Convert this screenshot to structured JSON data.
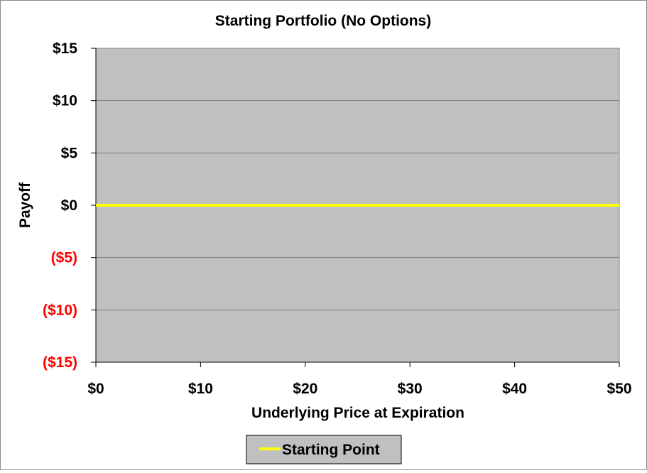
{
  "chart_data": {
    "type": "line",
    "title": "Starting Portfolio (No Options)",
    "xlabel": "Underlying Price at Expiration",
    "ylabel": "Payoff",
    "xlim": [
      0,
      50
    ],
    "ylim": [
      -15,
      15
    ],
    "x_ticks": [
      0,
      10,
      20,
      30,
      40,
      50
    ],
    "x_tick_labels": [
      "$0",
      "$10",
      "$20",
      "$30",
      "$40",
      "$50"
    ],
    "y_ticks": [
      15,
      10,
      5,
      0,
      -5,
      -10,
      -15
    ],
    "y_tick_labels": [
      "$15",
      "$10",
      "$5",
      "$0",
      "($5)",
      "($10)",
      "($15)"
    ],
    "negative_tick_color": "#ff0000",
    "positive_tick_color": "#000000",
    "plot_background": "#c0c0c0",
    "grid": true,
    "grid_color": "#7f7f7f",
    "legend_position": "bottom",
    "series": [
      {
        "name": "Starting Point",
        "color": "#ffff00",
        "x": [
          0,
          50
        ],
        "y": [
          0,
          0
        ]
      }
    ]
  }
}
